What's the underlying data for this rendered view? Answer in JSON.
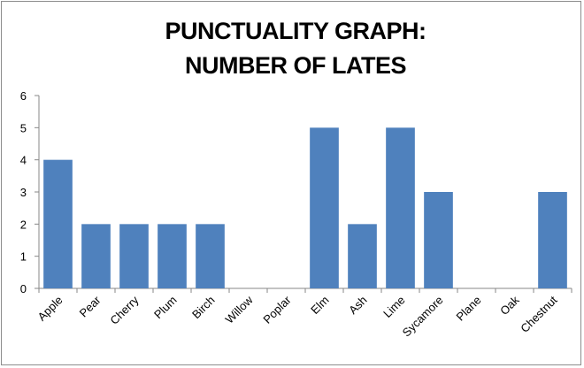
{
  "chart_data": {
    "type": "bar",
    "title_lines": [
      "PUNCTUALITY GRAPH:",
      "NUMBER OF LATES"
    ],
    "categories": [
      "Apple",
      "Pear",
      "Cherry",
      "Plum",
      "Birch",
      "Willow",
      "Poplar",
      "Elm",
      "Ash",
      "Lime",
      "Sycamore",
      "Plane",
      "Oak",
      "Chestnut"
    ],
    "values": [
      4,
      2,
      2,
      2,
      2,
      0,
      0,
      5,
      2,
      5,
      3,
      0,
      0,
      3
    ],
    "ylim": [
      0,
      6
    ],
    "yticks": [
      0,
      1,
      2,
      3,
      4,
      5,
      6
    ],
    "grid": false,
    "legend": "none",
    "bar_color": "#4f81bd"
  }
}
